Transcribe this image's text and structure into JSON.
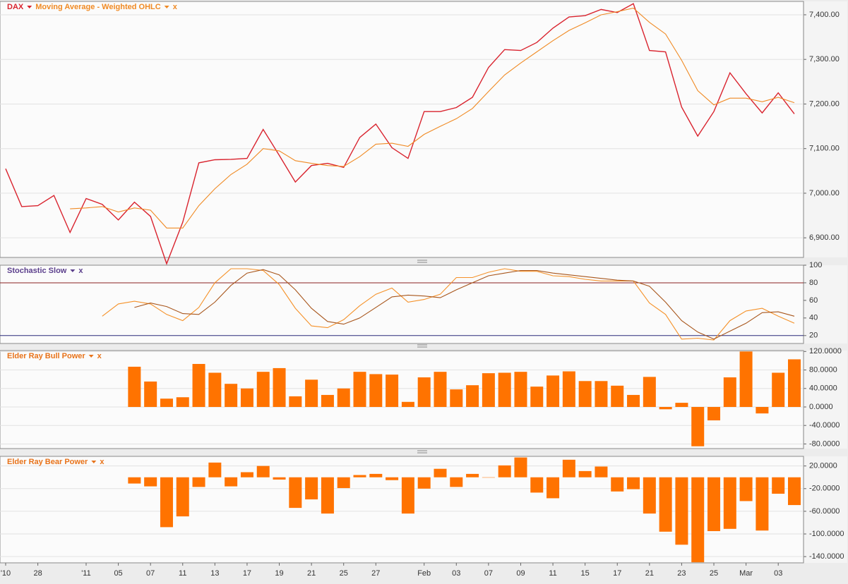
{
  "chart_data": [
    {
      "type": "line",
      "series": [
        {
          "name": "DAX",
          "color": "#d9232e",
          "values": [
            7055,
            6970,
            6972,
            6995,
            6912,
            6988,
            6975,
            6940,
            6980,
            6948,
            6842,
            6935,
            7068,
            7075,
            7076,
            7078,
            7143,
            7085,
            7025,
            7062,
            7067,
            7058,
            7125,
            7155,
            7102,
            7078,
            7183,
            7183,
            7192,
            7215,
            7282,
            7322,
            7320,
            7338,
            7370,
            7395,
            7398,
            7412,
            7405,
            7425,
            7320,
            7317,
            7193,
            7128,
            7183,
            7270,
            7223,
            7180,
            7225,
            7178
          ]
        },
        {
          "name": "Moving Average - Weighted OHLC",
          "color": "#f08a24",
          "values": [
            null,
            null,
            null,
            null,
            6965,
            6967,
            6970,
            6958,
            6967,
            6962,
            6922,
            6922,
            6972,
            7010,
            7042,
            7065,
            7100,
            7095,
            7073,
            7067,
            7062,
            7060,
            7082,
            7110,
            7112,
            7105,
            7132,
            7150,
            7167,
            7190,
            7228,
            7265,
            7292,
            7317,
            7342,
            7365,
            7382,
            7400,
            7407,
            7415,
            7383,
            7357,
            7298,
            7230,
            7198,
            7213,
            7213,
            7205,
            7215,
            7203
          ]
        }
      ],
      "close_label": "x",
      "ylim": [
        6856,
        7430
      ],
      "yticks": [
        {
          "value": 6900,
          "label": "6,900.00"
        },
        {
          "value": 7000,
          "label": "7,000.00"
        },
        {
          "value": 7100,
          "label": "7,100.00"
        },
        {
          "value": 7200,
          "label": "7,200.00"
        },
        {
          "value": 7300,
          "label": "7,300.00"
        },
        {
          "value": 7400,
          "label": "7,400.00"
        }
      ],
      "grid": true
    },
    {
      "type": "line",
      "title": "Stochastic Slow",
      "title_color": "#5b3f8c",
      "series": [
        {
          "color": "#f5922a",
          "values": [
            null,
            null,
            null,
            null,
            null,
            null,
            42,
            56,
            59,
            56,
            44,
            37,
            52,
            80,
            96,
            96,
            94,
            78,
            51,
            31,
            29,
            38,
            54,
            67,
            74,
            58,
            61,
            67,
            86,
            86,
            92,
            96,
            93,
            93,
            88,
            87,
            84,
            82,
            82,
            82,
            57,
            44,
            16,
            17,
            15,
            37,
            48,
            51,
            42,
            34
          ]
        },
        {
          "color": "#a8561c",
          "values": [
            null,
            null,
            null,
            null,
            null,
            null,
            null,
            null,
            52,
            57,
            53,
            45,
            44,
            58,
            77,
            91,
            95,
            89,
            72,
            51,
            36,
            33,
            40,
            52,
            64,
            66,
            65,
            63,
            72,
            80,
            88,
            91,
            94,
            94,
            91,
            89,
            87,
            85,
            83,
            82,
            76,
            58,
            37,
            24,
            16,
            25,
            34,
            46,
            47,
            42
          ]
        }
      ],
      "reference_lines": [
        {
          "value": 80,
          "color": "#8b2020"
        },
        {
          "value": 20,
          "color": "#2b2b7a"
        }
      ],
      "close_label": "x",
      "ylim": [
        11,
        100
      ],
      "yticks": [
        20,
        40,
        60,
        80,
        100
      ],
      "grid": false
    },
    {
      "type": "bar",
      "title": "Elder Ray Bull Power",
      "title_color": "#e8731a",
      "color": "#ff7300",
      "values": [
        null,
        null,
        null,
        null,
        null,
        null,
        null,
        null,
        87,
        55,
        18,
        21,
        93,
        74,
        50,
        40,
        76,
        84,
        23,
        59,
        26,
        40,
        76,
        71,
        70,
        11,
        64,
        76,
        38,
        47,
        73,
        74,
        76,
        44,
        68,
        77,
        56,
        56,
        46,
        26,
        65,
        -5,
        9,
        -85,
        -29,
        64,
        120,
        -14,
        74,
        103
      ],
      "close_label": "x",
      "ylim": [
        -90,
        122
      ],
      "yticks": [
        {
          "value": -80,
          "label": "-80.0000"
        },
        {
          "value": -40,
          "label": "-40.0000"
        },
        {
          "value": 0,
          "label": "0.0000"
        },
        {
          "value": 40,
          "label": "40.0000"
        },
        {
          "value": 80,
          "label": "80.0000"
        },
        {
          "value": 120,
          "label": "120.0000"
        }
      ],
      "grid": true
    },
    {
      "type": "bar",
      "title": "Elder Ray Bear Power",
      "title_color": "#e8731a",
      "color": "#ff7300",
      "values": [
        null,
        null,
        null,
        null,
        null,
        null,
        null,
        null,
        -11,
        -16,
        -88,
        -69,
        -17,
        26,
        -16,
        9,
        20,
        -4,
        -54,
        -39,
        -64,
        -19,
        4,
        6,
        -5,
        -64,
        -20,
        15,
        -17,
        6,
        0,
        21,
        35,
        -27,
        -37,
        31,
        11,
        19,
        -25,
        -21,
        -64,
        -96,
        -119,
        -150,
        -95,
        -91,
        -42,
        -94,
        -29,
        -49
      ],
      "categories": [
        "'10",
        null,
        "28",
        null,
        null,
        "'11",
        null,
        "05",
        null,
        "07",
        null,
        "11",
        null,
        "13",
        null,
        "17",
        null,
        "19",
        null,
        "21",
        null,
        "25",
        null,
        "27",
        null,
        null,
        "Feb",
        null,
        "03",
        null,
        "07",
        null,
        "09",
        null,
        "11",
        null,
        "15",
        null,
        "17",
        null,
        "21",
        null,
        "23",
        null,
        "25",
        null,
        "Mar",
        null,
        "03",
        null
      ],
      "close_label": "x",
      "ylim": [
        -151,
        37
      ],
      "yticks": [
        {
          "value": -140,
          "label": "-140.0000"
        },
        {
          "value": -100,
          "label": "-100.0000"
        },
        {
          "value": -60,
          "label": "-60.0000"
        },
        {
          "value": -20,
          "label": "-20.0000"
        },
        {
          "value": 20,
          "label": "20.0000"
        }
      ],
      "grid": true
    }
  ]
}
